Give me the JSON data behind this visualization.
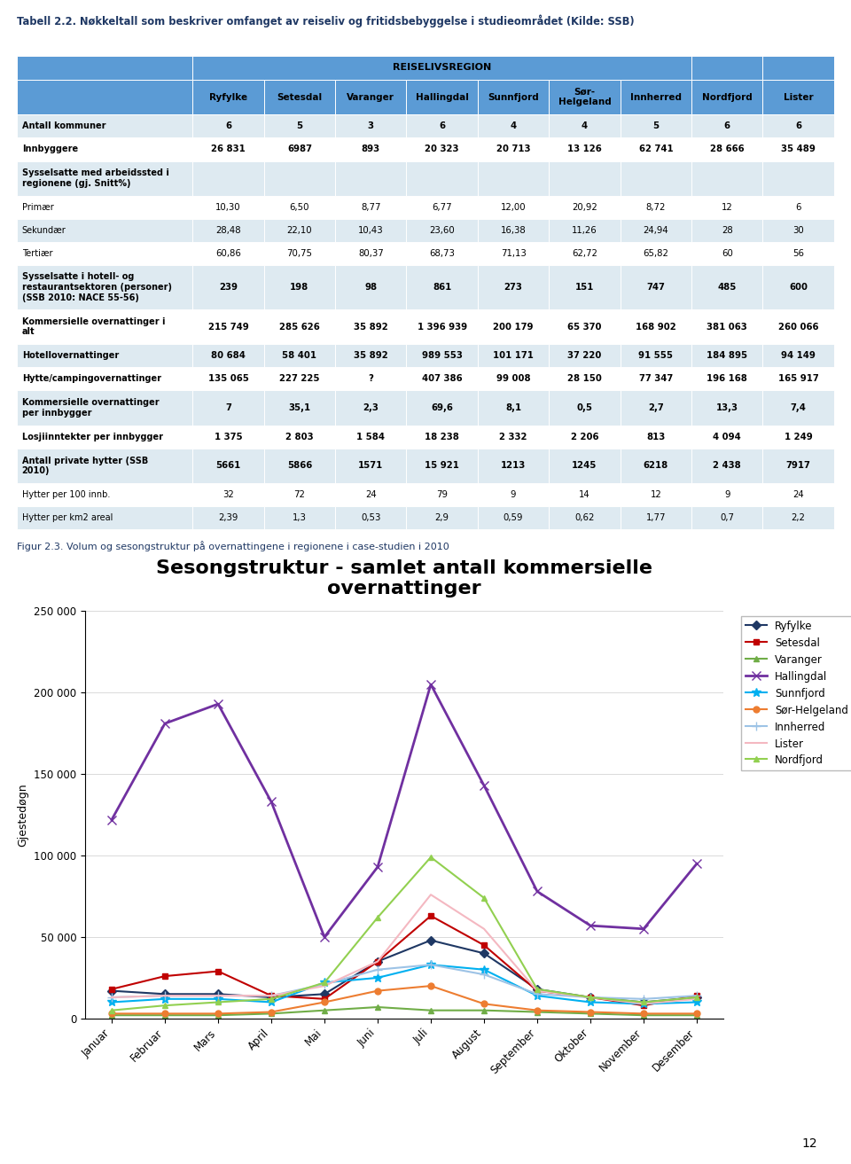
{
  "title_table": "Tabell 2.2. Nøkkeltall som beskriver omfanget av reiseliv og fritidsbebyggelse i studieområdet (Kilde: SSB)",
  "reiselivsregion_label": "REISELIVSREGION",
  "columns": [
    "Ryfylke",
    "Setesdal",
    "Varanger",
    "Hallingdal",
    "Sunnfjord",
    "Sør-\nHelgeland",
    "Innherred",
    "Nordfjord",
    "Lister"
  ],
  "rows": [
    {
      "label": "Antall kommuner",
      "values": [
        "6",
        "5",
        "3",
        "6",
        "4",
        "4",
        "5",
        "6",
        "6"
      ],
      "bold": true
    },
    {
      "label": "Innbyggere",
      "values": [
        "26 831",
        "6987",
        "893",
        "20 323",
        "20 713",
        "13 126",
        "62 741",
        "28 666",
        "35 489"
      ],
      "bold": true
    },
    {
      "label": "Sysselsatte med arbeidssted i\nregionene (gj. Snitt%)",
      "values": [
        "",
        "",
        "",
        "",
        "",
        "",
        "",
        "",
        ""
      ],
      "bold": true,
      "header": true
    },
    {
      "label": "Primær",
      "values": [
        "10,30",
        "6,50",
        "8,77",
        "6,77",
        "12,00",
        "20,92",
        "8,72",
        "12",
        "6"
      ],
      "bold": false
    },
    {
      "label": "Sekundær",
      "values": [
        "28,48",
        "22,10",
        "10,43",
        "23,60",
        "16,38",
        "11,26",
        "24,94",
        "28",
        "30"
      ],
      "bold": false
    },
    {
      "label": "Tertiær",
      "values": [
        "60,86",
        "70,75",
        "80,37",
        "68,73",
        "71,13",
        "62,72",
        "65,82",
        "60",
        "56"
      ],
      "bold": false
    },
    {
      "label": "Sysselsatte i hotell- og\nrestaurantsektoren (personer)\n(SSB 2010: NACE 55-56)",
      "values": [
        "239",
        "198",
        "98",
        "861",
        "273",
        "151",
        "747",
        "485",
        "600"
      ],
      "bold": true
    },
    {
      "label": "Kommersielle overnattinger i\nalt",
      "values": [
        "215 749",
        "285 626",
        "35 892",
        "1 396 939",
        "200 179",
        "65 370",
        "168 902",
        "381 063",
        "260 066"
      ],
      "bold": true
    },
    {
      "label": "Hotellovernattinger",
      "values": [
        "80 684",
        "58 401",
        "35 892",
        "989 553",
        "101 171",
        "37 220",
        "91 555",
        "184 895",
        "94 149"
      ],
      "bold": true
    },
    {
      "label": "Hytte/campingovernattinger",
      "values": [
        "135 065",
        "227 225",
        "?",
        "407 386",
        "99 008",
        "28 150",
        "77 347",
        "196 168",
        "165 917"
      ],
      "bold": true
    },
    {
      "label": "Kommersielle overnattinger\nper innbygger",
      "values": [
        "7",
        "35,1",
        "2,3",
        "69,6",
        "8,1",
        "0,5",
        "2,7",
        "13,3",
        "7,4"
      ],
      "bold": true
    },
    {
      "label": "Losjiinntekter per innbygger",
      "values": [
        "1 375",
        "2 803",
        "1 584",
        "18 238",
        "2 332",
        "2 206",
        "813",
        "4 094",
        "1 249"
      ],
      "bold": true
    },
    {
      "label": "Antall private hytter (SSB\n2010)",
      "values": [
        "5661",
        "5866",
        "1571",
        "15 921",
        "1213",
        "1245",
        "6218",
        "2 438",
        "7917"
      ],
      "bold": true
    },
    {
      "label": "Hytter per 100 innb.",
      "values": [
        "32",
        "72",
        "24",
        "79",
        "9",
        "14",
        "12",
        "9",
        "24"
      ],
      "bold": false
    },
    {
      "label": "Hytter per km2 areal",
      "values": [
        "2,39",
        "1,3",
        "0,53",
        "2,9",
        "0,59",
        "0,62",
        "1,77",
        "0,7",
        "2,2"
      ],
      "bold": false
    }
  ],
  "fig_caption": "Figur 2.3. Volum og sesongstruktur på overnattingene i regionene i case-studien i 2010",
  "chart_title": "Sesongstruktur - samlet antall kommersielle\novernattinger",
  "chart_ylabel": "Gjestedøgn",
  "chart_months": [
    "Januar",
    "Februar",
    "Mars",
    "April",
    "Mai",
    "Juni",
    "Juli",
    "August",
    "September",
    "Oktober",
    "November",
    "Desember"
  ],
  "chart_ylim": [
    0,
    250000
  ],
  "chart_yticks": [
    0,
    50000,
    100000,
    150000,
    200000,
    250000
  ],
  "series": [
    {
      "name": "Ryfylke",
      "color": "#1F3864",
      "marker": "D",
      "markersize": 5,
      "linewidth": 1.5,
      "values": [
        17000,
        15000,
        15000,
        13000,
        15000,
        35000,
        48000,
        40000,
        18000,
        13000,
        10000,
        13000
      ]
    },
    {
      "name": "Setesdal",
      "color": "#C00000",
      "marker": "s",
      "markersize": 5,
      "linewidth": 1.5,
      "values": [
        18000,
        26000,
        29000,
        14000,
        12000,
        35000,
        63000,
        45000,
        17000,
        13000,
        8000,
        14000
      ]
    },
    {
      "name": "Varanger",
      "color": "#70AD47",
      "marker": "^",
      "markersize": 5,
      "linewidth": 1.5,
      "values": [
        2000,
        2000,
        2000,
        3000,
        5000,
        7000,
        5000,
        5000,
        4000,
        3000,
        2000,
        2000
      ]
    },
    {
      "name": "Hallingdal",
      "color": "#7030A0",
      "marker": "x",
      "markersize": 7,
      "linewidth": 2.0,
      "values": [
        122000,
        181000,
        193000,
        133000,
        50000,
        93000,
        205000,
        143000,
        78000,
        57000,
        55000,
        95000
      ]
    },
    {
      "name": "Sunnfjord",
      "color": "#00B0F0",
      "marker": "*",
      "markersize": 7,
      "linewidth": 1.5,
      "values": [
        10000,
        12000,
        12000,
        10000,
        22000,
        25000,
        33000,
        30000,
        14000,
        10000,
        9000,
        10000
      ]
    },
    {
      "name": "Sør-Helgeland",
      "color": "#ED7D31",
      "marker": "o",
      "markersize": 5,
      "linewidth": 1.5,
      "values": [
        3000,
        3000,
        3000,
        4000,
        10000,
        17000,
        20000,
        9000,
        5000,
        4000,
        3000,
        3000
      ]
    },
    {
      "name": "Innherred",
      "color": "#9DC3E6",
      "marker": "+",
      "markersize": 7,
      "linewidth": 1.5,
      "values": [
        13000,
        14000,
        14000,
        14000,
        21000,
        30000,
        33000,
        27000,
        15000,
        13000,
        12000,
        14000
      ]
    },
    {
      "name": "Lister",
      "color": "#F4B8C1",
      "marker": "None",
      "markersize": 0,
      "linewidth": 1.5,
      "values": [
        13000,
        14000,
        14000,
        14000,
        20000,
        35000,
        76000,
        55000,
        17000,
        13000,
        9000,
        12000
      ]
    },
    {
      "name": "Nordfjord",
      "color": "#92D050",
      "marker": "^",
      "markersize": 5,
      "linewidth": 1.5,
      "values": [
        5000,
        8000,
        10000,
        12000,
        22000,
        62000,
        99000,
        74000,
        18000,
        13000,
        10000,
        13000
      ]
    }
  ],
  "page_number": "12",
  "header_bg": "#5B9BD5",
  "row_bg_odd": "#DEEAF1",
  "row_bg_even": "#FFFFFF",
  "border_color": "#FFFFFF",
  "title_color": "#1F3864",
  "caption_color": "#1F3864"
}
